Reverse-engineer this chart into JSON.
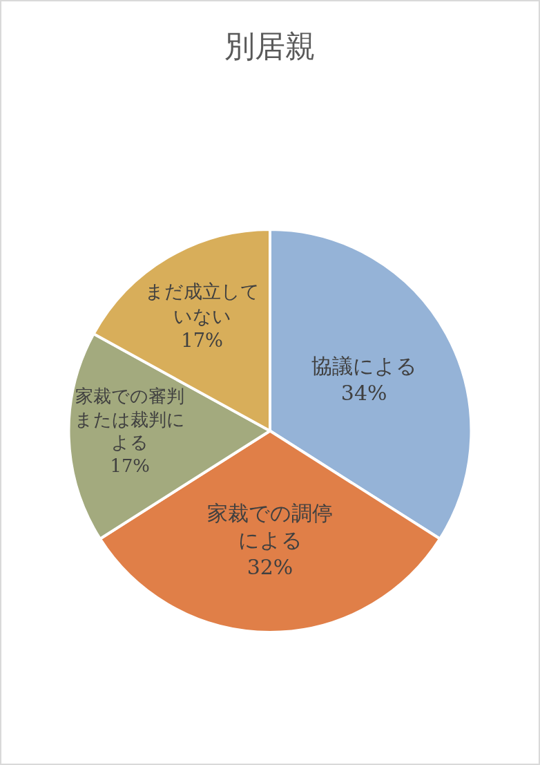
{
  "chart_data": {
    "type": "pie",
    "title": "別居親",
    "categories": [
      "協議による",
      "家裁での調停による",
      "家裁での審判または裁判による",
      "まだ成立していない"
    ],
    "values": [
      34,
      32,
      17,
      17
    ],
    "value_labels": [
      "34%",
      "32%",
      "17%",
      "17%"
    ],
    "colors": [
      "#95b3d7",
      "#e07f48",
      "#a3aa7e",
      "#d8ae5a"
    ],
    "legend": false
  }
}
